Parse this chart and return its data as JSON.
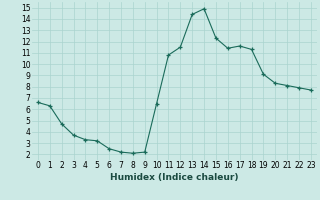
{
  "x": [
    0,
    1,
    2,
    3,
    4,
    5,
    6,
    7,
    8,
    9,
    10,
    11,
    12,
    13,
    14,
    15,
    16,
    17,
    18,
    19,
    20,
    21,
    22,
    23
  ],
  "y": [
    6.6,
    6.3,
    4.7,
    3.7,
    3.3,
    3.2,
    2.5,
    2.2,
    2.1,
    2.2,
    6.5,
    10.8,
    11.5,
    14.4,
    14.9,
    12.3,
    11.4,
    11.6,
    11.3,
    9.1,
    8.3,
    8.1,
    7.9,
    7.7
  ],
  "line_color": "#1a6b5a",
  "marker": "+",
  "marker_size": 3,
  "bg_color": "#cce9e5",
  "grid_color": "#aad4cf",
  "xlabel": "Humidex (Indice chaleur)",
  "xlim": [
    -0.5,
    23.5
  ],
  "ylim": [
    1.5,
    15.5
  ],
  "yticks": [
    2,
    3,
    4,
    5,
    6,
    7,
    8,
    9,
    10,
    11,
    12,
    13,
    14,
    15
  ],
  "xticks": [
    0,
    1,
    2,
    3,
    4,
    5,
    6,
    7,
    8,
    9,
    10,
    11,
    12,
    13,
    14,
    15,
    16,
    17,
    18,
    19,
    20,
    21,
    22,
    23
  ],
  "label_fontsize": 6.5,
  "tick_fontsize": 5.5
}
